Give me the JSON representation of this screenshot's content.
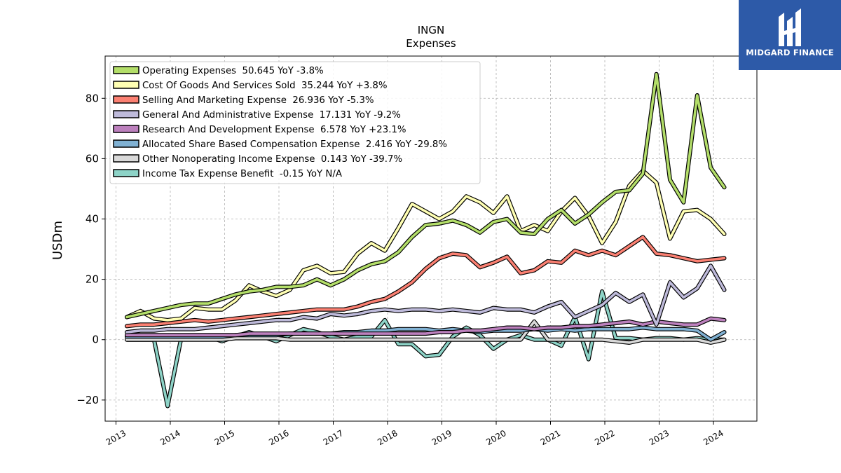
{
  "chart_data": {
    "type": "line",
    "title": "INGN",
    "subtitle": "Expenses",
    "ylabel": "USDm",
    "xlabel": "",
    "xlim": [
      2012.8,
      2024.8
    ],
    "ylim": [
      -27,
      94
    ],
    "yticks": [
      -20,
      0,
      20,
      40,
      60,
      80
    ],
    "xticks": [
      2013,
      2014,
      2015,
      2016,
      2017,
      2018,
      2019,
      2020,
      2021,
      2022,
      2023,
      2024
    ],
    "grid": true,
    "legend_position": "top-left",
    "x": [
      2013.2,
      2013.45,
      2013.7,
      2013.95,
      2014.2,
      2014.45,
      2014.7,
      2014.95,
      2015.2,
      2015.45,
      2015.7,
      2015.95,
      2016.2,
      2016.45,
      2016.7,
      2016.95,
      2017.2,
      2017.45,
      2017.7,
      2017.95,
      2018.2,
      2018.45,
      2018.7,
      2018.95,
      2019.2,
      2019.45,
      2019.7,
      2019.95,
      2020.2,
      2020.45,
      2020.7,
      2020.95,
      2021.2,
      2021.45,
      2021.7,
      2021.95,
      2022.2,
      2022.45,
      2022.7,
      2022.95,
      2023.2,
      2023.45,
      2023.7,
      2023.95,
      2024.2
    ],
    "series": [
      {
        "name": "Operating Expenses",
        "legend": "Operating Expenses  50.645 YoY -3.8%",
        "color": "#b3de69",
        "values": [
          7.5,
          8.5,
          9.5,
          10.5,
          11.5,
          12,
          12,
          13.5,
          15,
          16,
          16.5,
          17.5,
          17.5,
          18,
          20,
          18,
          20,
          23,
          25,
          26,
          29,
          34,
          38,
          38.5,
          39.5,
          38,
          35.5,
          39,
          40,
          35.5,
          35,
          40,
          43,
          38.5,
          41.5,
          45.5,
          49,
          49.5,
          55,
          88,
          53,
          45.5,
          81,
          57,
          50.5
        ]
      },
      {
        "name": "Cost Of Goods And Services Sold",
        "legend": "Cost Of Goods And Services Sold  35.244 YoY +3.8%",
        "color": "#ffffb3",
        "values": [
          7.5,
          9.5,
          7,
          6.5,
          7,
          10.5,
          10,
          10,
          13,
          18,
          16,
          14.5,
          16.5,
          23,
          24.5,
          22,
          22.5,
          28.5,
          32,
          29.5,
          37,
          45,
          42.5,
          40,
          42.5,
          47.5,
          45.5,
          42,
          47.5,
          36,
          38,
          36,
          42.5,
          47,
          41,
          32,
          39,
          51,
          56,
          52,
          33.5,
          42.5,
          43,
          40,
          35
        ]
      },
      {
        "name": "Selling And Marketing Expense",
        "legend": "Selling And Marketing Expense  26.936 YoY -5.3%",
        "color": "#fb8072",
        "values": [
          4.5,
          5,
          5,
          5.5,
          6,
          6.5,
          6,
          6.5,
          7,
          7.5,
          8,
          8.5,
          9,
          9.5,
          10,
          10,
          10,
          11,
          12.5,
          13.5,
          16,
          19,
          23.5,
          27,
          28.5,
          28,
          24,
          25.5,
          27.5,
          22,
          23,
          26,
          25.5,
          29.5,
          28,
          29.5,
          28,
          31,
          34,
          28.5,
          28,
          27,
          26,
          26.5,
          27
        ]
      },
      {
        "name": "General And Administrative Expense",
        "legend": "General And Administrative Expense  17.131 YoY -9.2%",
        "color": "#bebada",
        "values": [
          2.5,
          3,
          3,
          3.5,
          3.5,
          3.5,
          4,
          4.5,
          5,
          5.5,
          6,
          6.5,
          6.5,
          7.5,
          7,
          8.5,
          8,
          8.5,
          9.5,
          10,
          9.5,
          10,
          10,
          9.5,
          10,
          9.5,
          9,
          10.5,
          10,
          10,
          9,
          11,
          12.5,
          7.5,
          9.5,
          11.5,
          15.5,
          12.5,
          15,
          5,
          19,
          14,
          17,
          24.5,
          16.5
        ]
      },
      {
        "name": "Research And Development Expense",
        "legend": "Research And Development Expense  6.578 YoY +23.1%",
        "color": "#bc80bd",
        "values": [
          1.5,
          1.5,
          1.5,
          1.5,
          1.5,
          1.5,
          1.5,
          1.5,
          1.5,
          2,
          2,
          2,
          2,
          2,
          2,
          2,
          2,
          2,
          2,
          2,
          2,
          2,
          2,
          2.5,
          2.5,
          3,
          3,
          3.5,
          4,
          4,
          3.5,
          4,
          4,
          4.5,
          4.5,
          5,
          5.5,
          6,
          5,
          6,
          5.5,
          5,
          5,
          7,
          6.5
        ]
      },
      {
        "name": "Allocated Share Based Compensation Expense",
        "legend": "Allocated Share Based Compensation Expense  2.416 YoY -29.8%",
        "color": "#80b1d3",
        "values": [
          1,
          1,
          1,
          1,
          1,
          1,
          1,
          1,
          1.5,
          1.5,
          1.5,
          1.5,
          2,
          2,
          2,
          2,
          2.5,
          2.5,
          3,
          3,
          3.5,
          3.5,
          3.5,
          3,
          3.5,
          3,
          2.5,
          3,
          3,
          3,
          3.5,
          3,
          3.5,
          3,
          3.5,
          3.5,
          3.5,
          3.5,
          4,
          3.5,
          3.5,
          3.5,
          3,
          0,
          2.5
        ]
      },
      {
        "name": "Other Nonoperating Income Expense",
        "legend": "Other Nonoperating Income Expense  0.143 YoY -39.7%",
        "color": "#d9d9d9",
        "values": [
          0,
          0,
          0,
          0,
          0,
          0,
          0,
          0,
          0.5,
          0.5,
          0.5,
          0.5,
          0,
          0,
          0,
          0,
          0,
          0,
          0,
          0,
          0,
          0,
          0,
          0,
          0,
          0,
          0,
          0,
          0,
          0,
          6,
          0,
          0,
          0,
          0,
          0,
          -0.5,
          -1,
          0,
          0,
          0,
          0,
          0,
          -1,
          0
        ]
      },
      {
        "name": "Income Tax Expense Benefit",
        "legend": "Income Tax Expense Benefit  -0.15 YoY N/A",
        "color": "#8dd3c7",
        "values": [
          0,
          0,
          0,
          -22,
          0.5,
          1,
          1,
          -0.5,
          1,
          2.5,
          1,
          -0.5,
          1.5,
          3.5,
          2.5,
          1,
          0,
          1,
          1,
          6.5,
          -1.5,
          -1.5,
          -5.5,
          -5,
          1,
          4,
          1.5,
          -3,
          0,
          1.5,
          0,
          0,
          -2,
          7.5,
          -6.5,
          16,
          0.5,
          0.5,
          0,
          0.5,
          0.5,
          0,
          0.5,
          0,
          0
        ]
      }
    ]
  },
  "brand": {
    "name": "MIDGARD FINANCE",
    "color": "#2d5aa8"
  }
}
